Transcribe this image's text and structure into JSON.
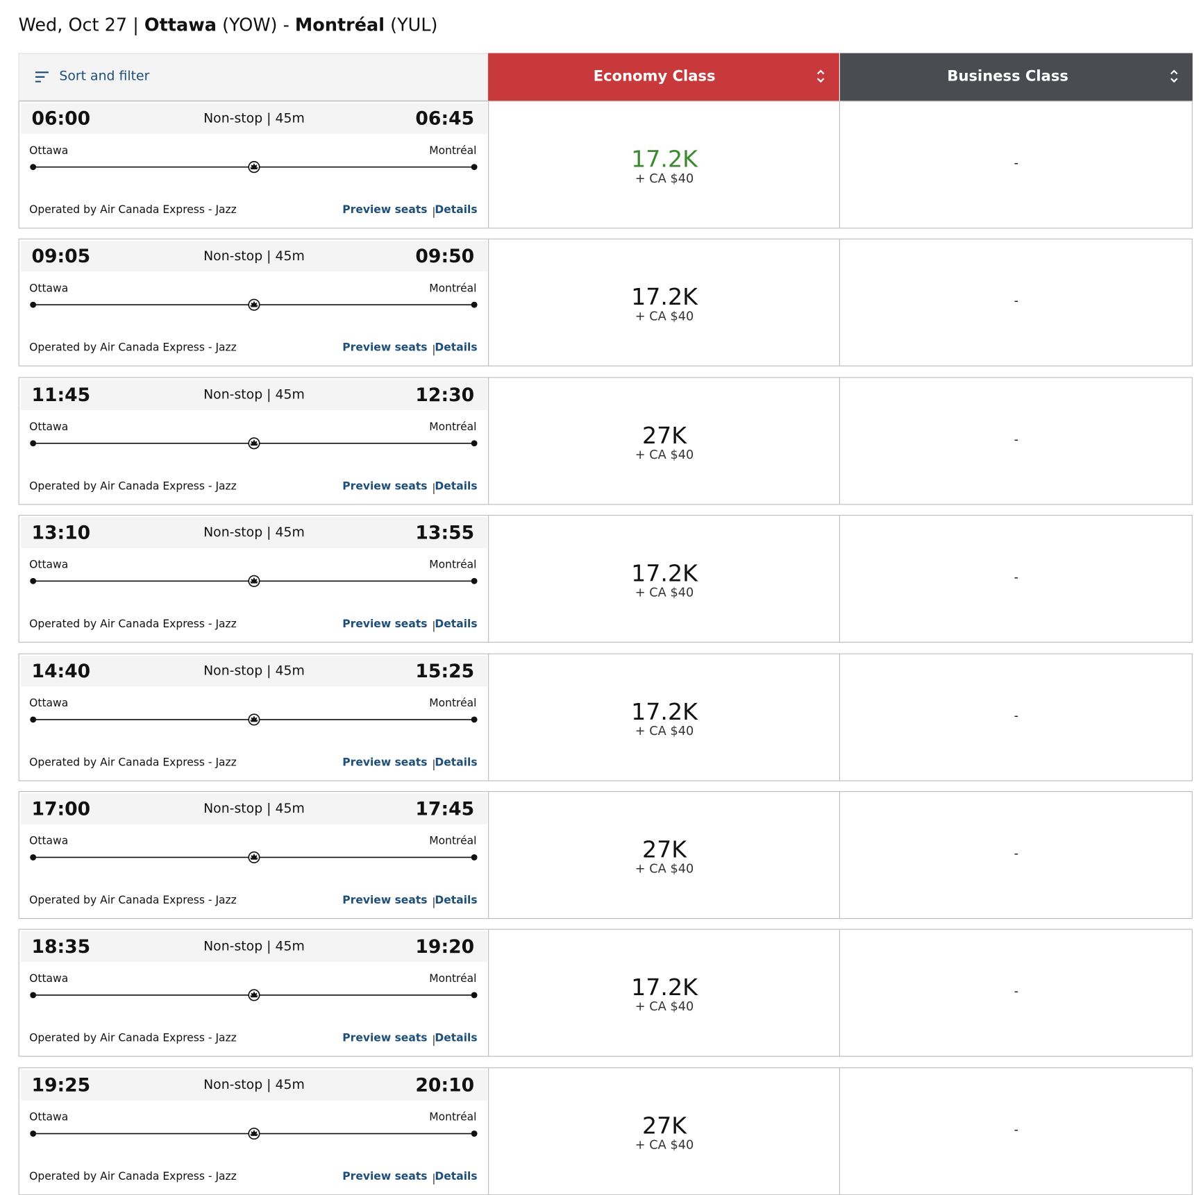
{
  "header": {
    "date": "Wed, Oct 27 |",
    "origin_city": "Ottawa",
    "origin_code": "(YOW) -",
    "dest_city": "Montréal",
    "dest_code": "(YUL)"
  },
  "columns": {
    "sort": "Sort and filter",
    "economy": "Economy Class",
    "business": "Business Class",
    "economy_color": "#c8393b",
    "business_color": "#4a4c51"
  },
  "flights": [
    {
      "depart": "06:00",
      "arrive": "06:45",
      "duration": "Non-stop | 45m",
      "origin": "Ottawa",
      "destination": "Montréal",
      "operator": "Operated by Air Canada Express - Jazz",
      "preview": "Preview seats",
      "details": "Details",
      "economy": "17.2K",
      "economy_color": "#3b8a2f",
      "fee": "+ CA $40",
      "business": "-"
    },
    {
      "depart": "09:05",
      "arrive": "09:50",
      "duration": "Non-stop | 45m",
      "origin": "Ottawa",
      "destination": "Montréal",
      "operator": "Operated by Air Canada Express - Jazz",
      "preview": "Preview seats",
      "details": "Details",
      "economy": "17.2K",
      "economy_color": "#111111",
      "fee": "+ CA $40",
      "business": "-"
    },
    {
      "depart": "11:45",
      "arrive": "12:30",
      "duration": "Non-stop | 45m",
      "origin": "Ottawa",
      "destination": "Montréal",
      "operator": "Operated by Air Canada Express - Jazz",
      "preview": "Preview seats",
      "details": "Details",
      "economy": "27K",
      "economy_color": "#111111",
      "fee": "+ CA $40",
      "business": "-"
    },
    {
      "depart": "13:10",
      "arrive": "13:55",
      "duration": "Non-stop | 45m",
      "origin": "Ottawa",
      "destination": "Montréal",
      "operator": "Operated by Air Canada Express - Jazz",
      "preview": "Preview seats",
      "details": "Details",
      "economy": "17.2K",
      "economy_color": "#111111",
      "fee": "+ CA $40",
      "business": "-"
    },
    {
      "depart": "14:40",
      "arrive": "15:25",
      "duration": "Non-stop | 45m",
      "origin": "Ottawa",
      "destination": "Montréal",
      "operator": "Operated by Air Canada Express - Jazz",
      "preview": "Preview seats",
      "details": "Details",
      "economy": "17.2K",
      "economy_color": "#111111",
      "fee": "+ CA $40",
      "business": "-"
    },
    {
      "depart": "17:00",
      "arrive": "17:45",
      "duration": "Non-stop | 45m",
      "origin": "Ottawa",
      "destination": "Montréal",
      "operator": "Operated by Air Canada Express - Jazz",
      "preview": "Preview seats",
      "details": "Details",
      "economy": "27K",
      "economy_color": "#111111",
      "fee": "+ CA $40",
      "business": "-"
    },
    {
      "depart": "18:35",
      "arrive": "19:20",
      "duration": "Non-stop | 45m",
      "origin": "Ottawa",
      "destination": "Montréal",
      "operator": "Operated by Air Canada Express - Jazz",
      "preview": "Preview seats",
      "details": "Details",
      "economy": "17.2K",
      "economy_color": "#111111",
      "fee": "+ CA $40",
      "business": "-"
    },
    {
      "depart": "19:25",
      "arrive": "20:10",
      "duration": "Non-stop | 45m",
      "origin": "Ottawa",
      "destination": "Montréal",
      "operator": "Operated by Air Canada Express - Jazz",
      "preview": "Preview seats",
      "details": "Details",
      "economy": "27K",
      "economy_color": "#111111",
      "fee": "+ CA $40",
      "business": "-"
    }
  ]
}
